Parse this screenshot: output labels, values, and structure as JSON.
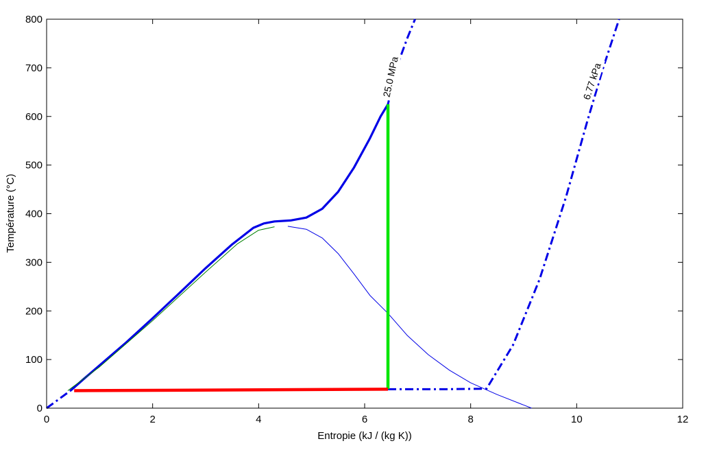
{
  "chart_data": {
    "type": "line",
    "title": "",
    "xlabel": "Entropie (kJ / (kg K))",
    "ylabel": "Température (°C)",
    "xlim": [
      0,
      12
    ],
    "ylim": [
      0,
      800
    ],
    "xticks": [
      0,
      2,
      4,
      6,
      8,
      10,
      12
    ],
    "yticks": [
      0,
      100,
      200,
      300,
      400,
      500,
      600,
      700,
      800
    ],
    "grid": false,
    "colors": {
      "blue": "#0000e6",
      "green": "#00e600",
      "red": "#ff0000",
      "dark_green": "#008000"
    },
    "annotations": [
      {
        "text": "25.0 MPa",
        "x": 6.55,
        "y": 680,
        "rotation": -78
      },
      {
        "text": "6.77 kPa",
        "x": 10.35,
        "y": 670,
        "rotation": -72
      }
    ],
    "series": [
      {
        "id": "isobar-25mpa-solid",
        "style": "solid-thick",
        "color": "#0000e6",
        "x": [
          0.45,
          0.7,
          1.0,
          1.5,
          2.0,
          2.5,
          3.0,
          3.5,
          3.9,
          4.1,
          4.3,
          4.6,
          4.9,
          5.2,
          5.5,
          5.8,
          6.1,
          6.3,
          6.44
        ],
        "y": [
          36,
          60,
          88,
          135,
          185,
          236,
          288,
          337,
          371,
          380,
          384,
          386,
          392,
          410,
          445,
          495,
          555,
          600,
          625
        ]
      },
      {
        "id": "isobar-25mpa-dashdot",
        "style": "dashdot",
        "color": "#0000e6",
        "x": [
          0,
          0.45,
          0.45,
          6.44,
          6.6,
          6.8,
          6.95
        ],
        "y": [
          0,
          36,
          null,
          625,
          700,
          760,
          800
        ]
      },
      {
        "id": "isobar-677kpa",
        "style": "dashdot",
        "color": "#0000e6",
        "x": [
          6.44,
          7.5,
          8.3,
          8.8,
          9.3,
          9.8,
          10.2,
          10.5,
          10.8
        ],
        "y": [
          39,
          39,
          40,
          130,
          265,
          435,
          590,
          700,
          800
        ]
      },
      {
        "id": "saturation-dome",
        "style": "thin",
        "color": "#0000e6",
        "x": [
          4.55,
          4.9,
          5.2,
          5.5,
          5.8,
          6.1,
          6.44,
          6.8,
          7.2,
          7.6,
          8.0,
          8.5,
          9.15
        ],
        "y": [
          374,
          368,
          350,
          318,
          276,
          232,
          195,
          150,
          110,
          78,
          52,
          28,
          0
        ]
      },
      {
        "id": "liquid-line",
        "style": "thin",
        "color": "#008000",
        "x": [
          0.4,
          1.0,
          2.0,
          3.0,
          3.6,
          4.0,
          4.3
        ],
        "y": [
          36,
          85,
          180,
          280,
          338,
          366,
          373
        ]
      },
      {
        "id": "expansion",
        "style": "thick",
        "color": "#00e600",
        "x": [
          6.44,
          6.44
        ],
        "y": [
          625,
          39
        ]
      },
      {
        "id": "condensation",
        "style": "thick",
        "color": "#ff0000",
        "x": [
          0.52,
          6.44
        ],
        "y": [
          36,
          39
        ]
      }
    ]
  }
}
